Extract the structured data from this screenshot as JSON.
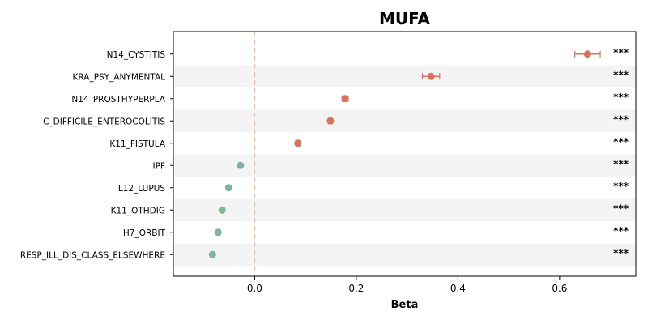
{
  "chart_data": {
    "type": "scatter",
    "title": "MUFA",
    "xlabel": "Beta",
    "xlim": [
      -0.16,
      0.75
    ],
    "xticks": [
      0.0,
      0.2,
      0.4,
      0.6
    ],
    "xtick_labels": [
      "0.0",
      "0.2",
      "0.4",
      "0.6"
    ],
    "reference_line": 0.0,
    "reference_line_color": "#f5c48a",
    "band_color": "#f4f4f4",
    "positive_color": "#d9745c",
    "negative_color": "#82b39b",
    "categories": [
      "N14_CYSTITIS",
      "KRA_PSY_ANYMENTAL",
      "N14_PROSTHYPERPLA",
      "C_DIFFICILE_ENTEROCOLITIS",
      "K11_FISTULA",
      "IPF",
      "L12_LUPUS",
      "K11_OTHDIG",
      "H7_ORBIT",
      "RESP_ILL_DIS_CLASS_ELSEWHERE"
    ],
    "beta": [
      0.655,
      0.347,
      0.178,
      0.149,
      0.085,
      -0.028,
      -0.051,
      -0.064,
      -0.072,
      -0.083
    ],
    "ci_low": [
      0.63,
      0.33,
      0.172,
      0.145,
      0.081,
      -0.031,
      -0.054,
      -0.067,
      -0.075,
      -0.086
    ],
    "ci_high": [
      0.68,
      0.364,
      0.184,
      0.153,
      0.089,
      -0.025,
      -0.048,
      -0.061,
      -0.069,
      -0.08
    ],
    "significance": [
      "***",
      "***",
      "***",
      "***",
      "***",
      "***",
      "***",
      "***",
      "***",
      "***"
    ],
    "grid": false,
    "legend": "none"
  }
}
